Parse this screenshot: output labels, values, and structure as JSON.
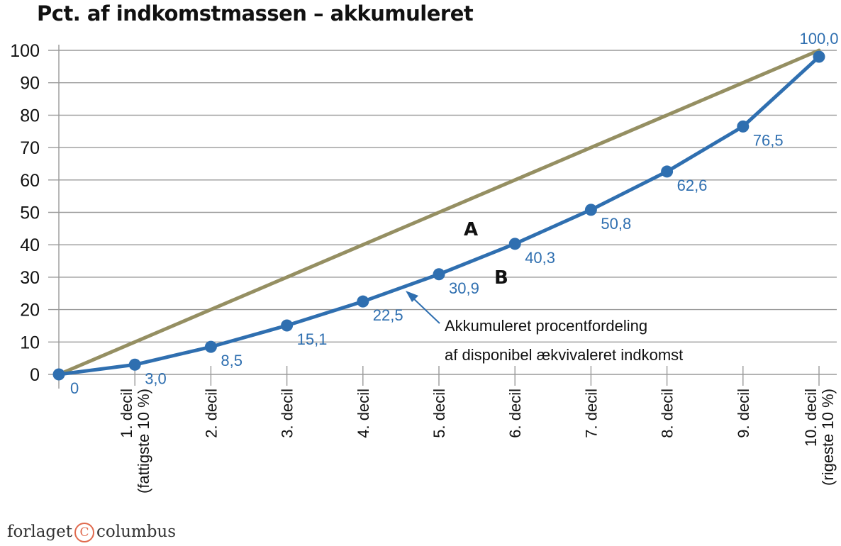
{
  "chart_data": {
    "type": "line",
    "title": "Pct. af indkomstmassen – akkumuleret",
    "categories": [
      [
        "",
        ""
      ],
      [
        "1. decil",
        "(fattigste 10 %)"
      ],
      [
        "2. decil",
        ""
      ],
      [
        "3. decil",
        ""
      ],
      [
        "4. decil",
        ""
      ],
      [
        "5. decil",
        ""
      ],
      [
        "6. decil",
        ""
      ],
      [
        "7. decil",
        ""
      ],
      [
        "8. decil",
        ""
      ],
      [
        "9. decil",
        ""
      ],
      [
        "10. decil",
        "(rigeste 10 %)"
      ]
    ],
    "y_ticks": [
      "0",
      "10",
      "20",
      "30",
      "40",
      "50",
      "60",
      "70",
      "80",
      "90",
      "100"
    ],
    "ylim": [
      0,
      100
    ],
    "grid": "horizontal",
    "series": [
      {
        "values": [
          0,
          10,
          20,
          30,
          40,
          50,
          60,
          70,
          80,
          90,
          100
        ],
        "color": "#958f62"
      },
      {
        "values": [
          0,
          3.0,
          8.5,
          15.1,
          22.5,
          30.9,
          40.3,
          50.8,
          62.6,
          76.5,
          100.0
        ],
        "data_labels": [
          "0",
          "3,0",
          "8,5",
          "15,1",
          "22,5",
          "30,9",
          "40,3",
          "50,8",
          "62,6",
          "76,5",
          "100,0"
        ],
        "color": "#2f6fb0"
      }
    ],
    "annotations": {
      "region_a": "A",
      "region_b": "B",
      "curve_note_line1": "Akkumuleret procentfordeling",
      "curve_note_line2": "af disponibel ækvivaleret indkomst"
    }
  },
  "publisher": {
    "left": "forlaget",
    "mark": "C",
    "right": "columbus",
    "mark_color": "#e06a4e"
  }
}
